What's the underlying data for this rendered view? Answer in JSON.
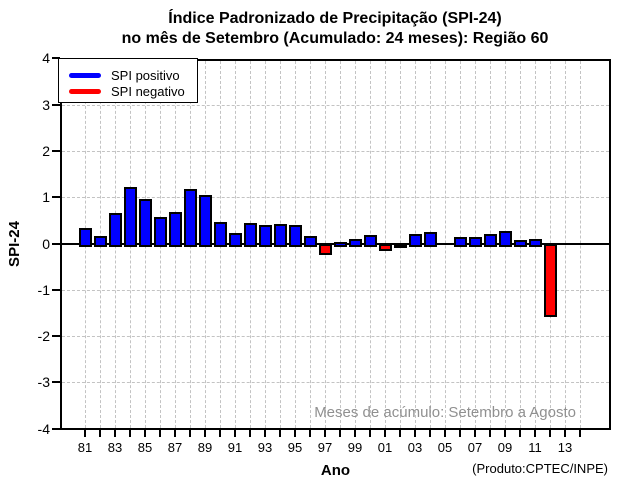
{
  "title": {
    "line1": "Índice Padronizado de Precipitação (SPI-24)",
    "line2": "no mês de Setembro (Acumulado: 24 meses): Região 60"
  },
  "legend": {
    "items": [
      {
        "label": "SPI positivo",
        "color": "#0000ff"
      },
      {
        "label": "SPI negativo",
        "color": "#ff0000"
      }
    ]
  },
  "annotation": "Meses de acúmulo: Setembro a Agosto",
  "credit": "(Produto:CPTEC/INPE)",
  "colors": {
    "positive": "#0000ff",
    "negative": "#ff0000",
    "grid": "#c3c3c3",
    "annotation_gray": "#909090",
    "axis": "#000000"
  },
  "chart_data": {
    "type": "bar",
    "title": "Índice Padronizado de Precipitação (SPI-24) no mês de Setembro (Acumulado: 24 meses): Região 60",
    "xlabel": "Ano",
    "ylabel": "SPI-24",
    "ylim": [
      -4,
      4
    ],
    "grid": "dashed gray; vertical line at every year, horizontal line at every integer SPI value",
    "legend_position": "top-left",
    "years": [
      1981,
      1982,
      1983,
      1984,
      1985,
      1986,
      1987,
      1988,
      1989,
      1990,
      1991,
      1992,
      1993,
      1994,
      1995,
      1996,
      1997,
      1998,
      1999,
      2000,
      2001,
      2002,
      2003,
      2004,
      2005,
      2006,
      2007,
      2008,
      2009,
      2010,
      2011,
      2012
    ],
    "values": [
      0.37,
      0.2,
      0.7,
      1.25,
      1.0,
      0.6,
      0.72,
      1.2,
      1.08,
      0.5,
      0.25,
      0.48,
      0.44,
      0.46,
      0.43,
      0.2,
      -0.19,
      0.06,
      0.13,
      0.22,
      -0.1,
      -0.05,
      0.23,
      0.27,
      0.0,
      0.17,
      0.17,
      0.24,
      0.31,
      0.11,
      0.12,
      -1.53
    ],
    "series_rule": [
      {
        "name": "SPI positivo",
        "color": "#0000ff",
        "applies_to": "values >= 0"
      },
      {
        "name": "SPI negativo",
        "color": "#ff0000",
        "applies_to": "values < 0"
      }
    ],
    "y_ticks": [
      4,
      3,
      2,
      1,
      0,
      -1,
      -2,
      -3,
      -4
    ],
    "x_tick_first": 1981,
    "x_tick_last": 2014,
    "x_tick_step": 1,
    "x_tick_labels": [
      {
        "year": 1981,
        "label": "81"
      },
      {
        "year": 1983,
        "label": "83"
      },
      {
        "year": 1985,
        "label": "85"
      },
      {
        "year": 1987,
        "label": "87"
      },
      {
        "year": 1989,
        "label": "89"
      },
      {
        "year": 1991,
        "label": "91"
      },
      {
        "year": 1993,
        "label": "93"
      },
      {
        "year": 1995,
        "label": "95"
      },
      {
        "year": 1997,
        "label": "97"
      },
      {
        "year": 1999,
        "label": "99"
      },
      {
        "year": 2001,
        "label": "01"
      },
      {
        "year": 2003,
        "label": "03"
      },
      {
        "year": 2005,
        "label": "05"
      },
      {
        "year": 2007,
        "label": "07"
      },
      {
        "year": 2009,
        "label": "09"
      },
      {
        "year": 2011,
        "label": "11"
      },
      {
        "year": 2013,
        "label": "13"
      }
    ]
  }
}
